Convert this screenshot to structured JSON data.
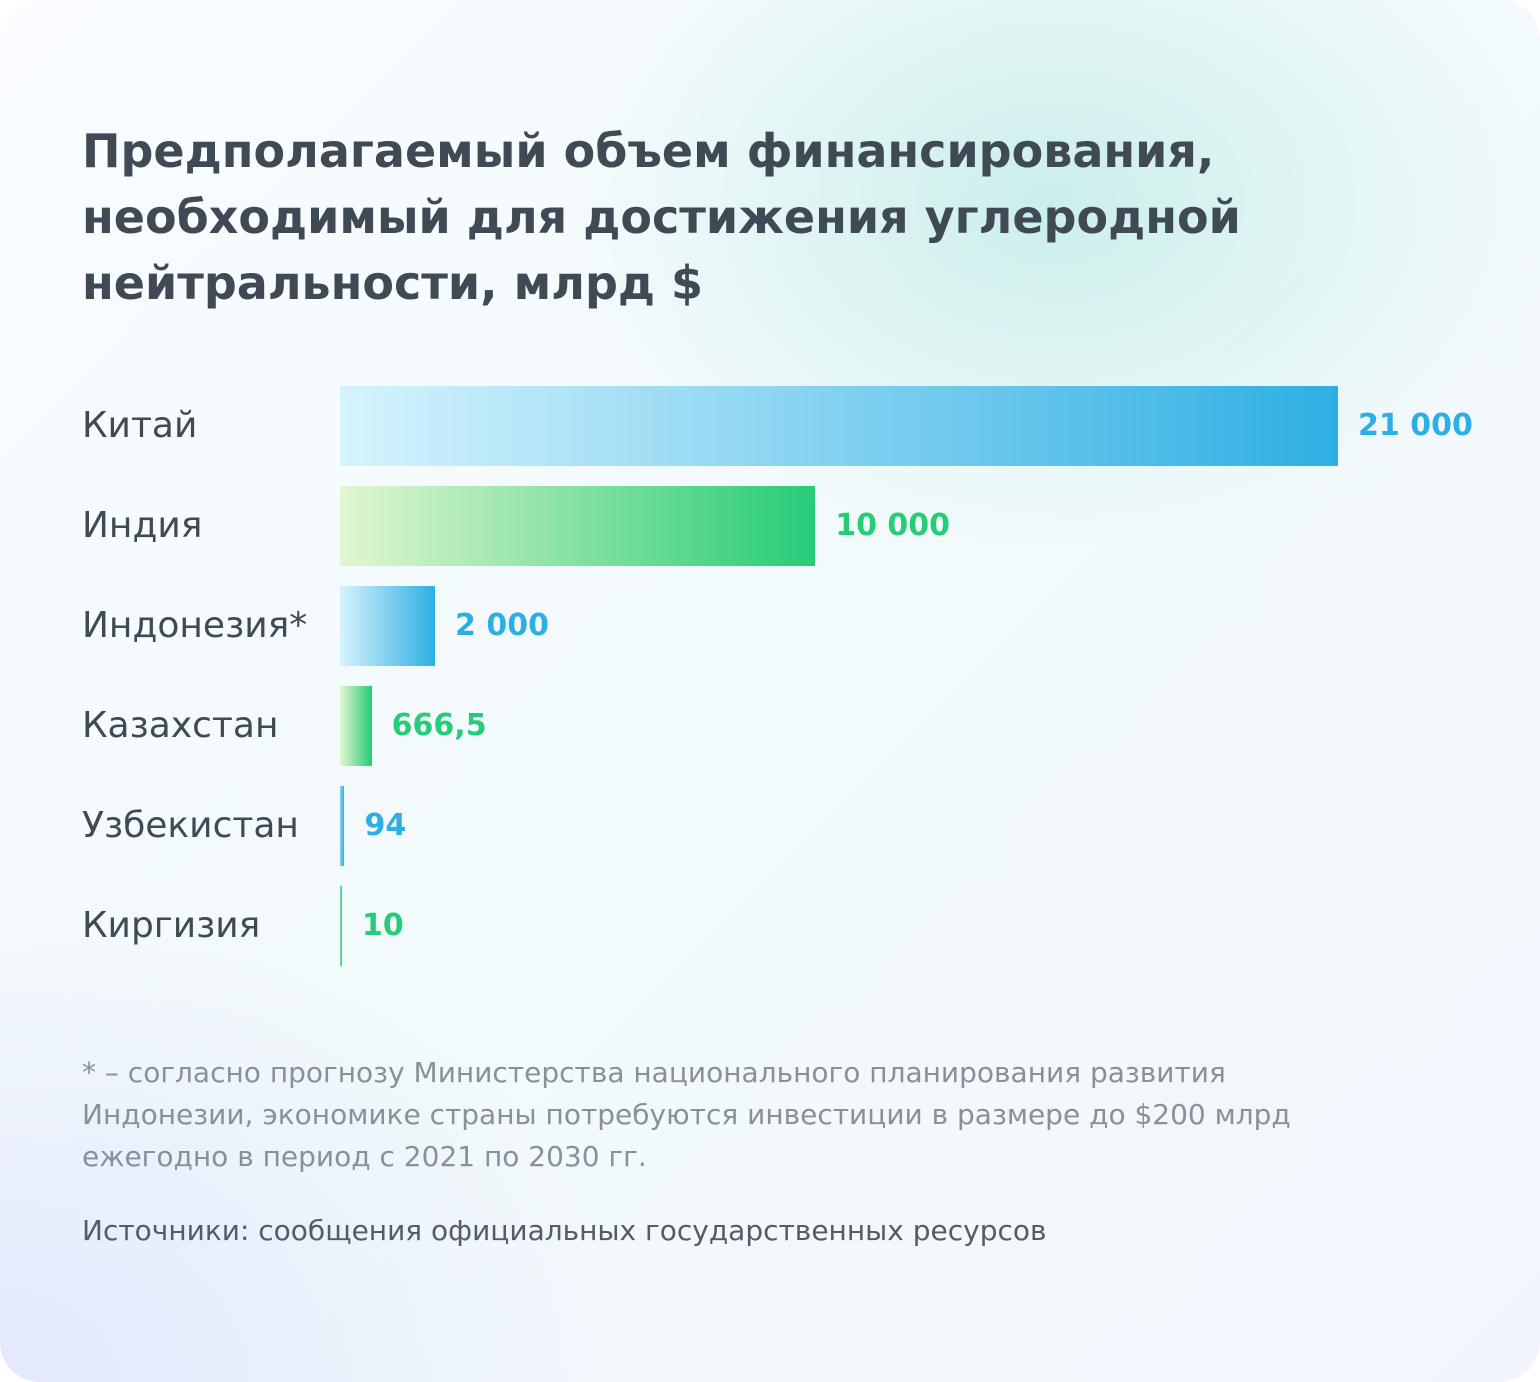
{
  "chart_data": {
    "type": "bar",
    "orientation": "horizontal",
    "title": "Предполагаемый объем финансирования, необходимый для достижения углеродной нейтральности, млрд $",
    "categories": [
      "Китай",
      "Индия",
      "Индонезия*",
      "Казахстан",
      "Узбекистан",
      "Киргизия"
    ],
    "values": [
      21000,
      10000,
      2000,
      666.5,
      94,
      10
    ],
    "value_labels": [
      "21 000",
      "10 000",
      "2 000",
      "666,5",
      "94",
      "10"
    ],
    "bar_colors": [
      "blue",
      "green",
      "blue",
      "green",
      "blue",
      "green"
    ],
    "xlim": [
      0,
      21000
    ],
    "grid": false,
    "axes_visible": false
  },
  "colors": {
    "blue": "#2eafe3",
    "blue_light": "#d6f3fd",
    "green": "#26cc78",
    "green_light": "#e2f6cf",
    "text": "#3f4a55"
  },
  "footnote": "* – согласно прогнозу Министерства национального планирования развития Индонезии, экономике страны потребуются инвестиции в размере до $200 млрд ежегодно в период с 2021 по 2030 гг.",
  "source": "Источники: сообщения официальных государственных ресурсов"
}
